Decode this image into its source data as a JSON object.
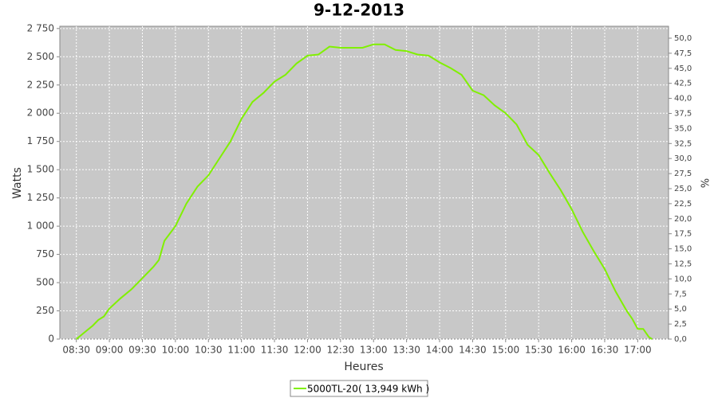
{
  "chart_data": {
    "type": "line",
    "title": "9-12-2013",
    "x_label": "Heures",
    "y_label": "Watts",
    "y2_label": "%",
    "x": [
      "08:30",
      "08:40",
      "08:45",
      "08:50",
      "08:55",
      "09:00",
      "09:10",
      "09:20",
      "09:30",
      "09:40",
      "09:45",
      "09:50",
      "10:00",
      "10:10",
      "10:20",
      "10:30",
      "10:40",
      "10:50",
      "11:00",
      "11:10",
      "11:20",
      "11:30",
      "11:40",
      "11:50",
      "12:00",
      "12:10",
      "12:20",
      "12:30",
      "12:40",
      "12:50",
      "13:00",
      "13:10",
      "13:20",
      "13:30",
      "13:40",
      "13:50",
      "14:00",
      "14:10",
      "14:20",
      "14:30",
      "14:40",
      "14:50",
      "15:00",
      "15:10",
      "15:20",
      "15:30",
      "15:40",
      "15:50",
      "16:00",
      "16:10",
      "16:20",
      "16:30",
      "16:40",
      "16:50",
      "16:55",
      "17:00",
      "17:05",
      "17:10",
      "17:13"
    ],
    "series": [
      {
        "name": "5000TL-20( 13,949 kWh )",
        "color": "#80f000",
        "values": [
          0,
          80,
          120,
          170,
          200,
          270,
          360,
          440,
          540,
          640,
          700,
          870,
          1000,
          1200,
          1350,
          1450,
          1600,
          1750,
          1950,
          2100,
          2180,
          2280,
          2340,
          2440,
          2510,
          2520,
          2590,
          2580,
          2580,
          2580,
          2610,
          2610,
          2560,
          2550,
          2520,
          2510,
          2450,
          2400,
          2340,
          2200,
          2160,
          2070,
          2000,
          1900,
          1720,
          1630,
          1470,
          1320,
          1150,
          950,
          780,
          620,
          420,
          250,
          180,
          90,
          90,
          20,
          0
        ]
      }
    ],
    "xlim": [
      "08:15",
      "17:28"
    ],
    "xticks": [
      "08:30",
      "09:00",
      "09:30",
      "10:00",
      "10:30",
      "11:00",
      "11:30",
      "12:00",
      "12:30",
      "13:00",
      "13:30",
      "14:00",
      "14:30",
      "15:00",
      "15:30",
      "16:00",
      "16:30",
      "17:00"
    ],
    "ylim": [
      0,
      2770
    ],
    "yticks": [
      0,
      250,
      500,
      750,
      {
        "value": 1000,
        "label": "1 000"
      },
      {
        "value": 1250,
        "label": "1 250"
      },
      {
        "value": 1500,
        "label": "1 500"
      },
      {
        "value": 1750,
        "label": "1 750"
      },
      {
        "value": 2000,
        "label": "2 000"
      },
      {
        "value": 2250,
        "label": "2 250"
      },
      {
        "value": 2500,
        "label": "2 500"
      },
      {
        "value": 2750,
        "label": "2 750"
      }
    ],
    "y2lim": [
      0,
      51.98
    ],
    "y2ticks": [
      {
        "value": 0,
        "label": "0,0"
      },
      {
        "value": 2.5,
        "label": "2,5"
      },
      {
        "value": 5,
        "label": "5,0"
      },
      {
        "value": 7.5,
        "label": "7,5"
      },
      {
        "value": 10,
        "label": "10,0"
      },
      {
        "value": 12.5,
        "label": "12,5"
      },
      {
        "value": 15,
        "label": "15,0"
      },
      {
        "value": 17.5,
        "label": "17,5"
      },
      {
        "value": 20,
        "label": "20,0"
      },
      {
        "value": 22.5,
        "label": "22,5"
      },
      {
        "value": 25,
        "label": "25,0"
      },
      {
        "value": 27.5,
        "label": "27,5"
      },
      {
        "value": 30,
        "label": "30,0"
      },
      {
        "value": 32.5,
        "label": "32,5"
      },
      {
        "value": 35,
        "label": "35,0"
      },
      {
        "value": 37.5,
        "label": "37,5"
      },
      {
        "value": 40,
        "label": "40,0"
      },
      {
        "value": 42.5,
        "label": "42,5"
      },
      {
        "value": 45,
        "label": "45,0"
      },
      {
        "value": 47.5,
        "label": "47,5"
      },
      {
        "value": 50,
        "label": "50,0"
      }
    ],
    "grid": true,
    "plot_background": "#c8c8c8"
  }
}
